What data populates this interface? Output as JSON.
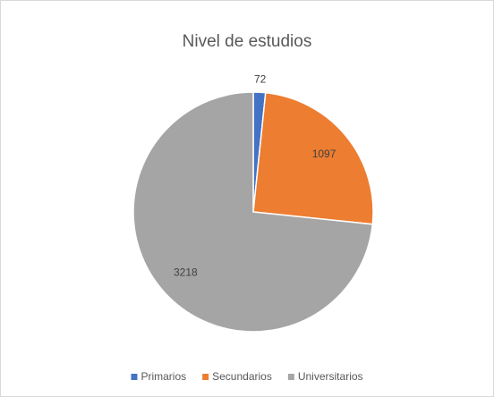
{
  "chart_data": {
    "type": "pie",
    "title": "Nivel de estudios",
    "categories": [
      "Primarios",
      "Secundarios",
      "Universitarios"
    ],
    "values": [
      72,
      1097,
      3218
    ],
    "colors": [
      "#4472c4",
      "#ed7d31",
      "#a5a5a5"
    ],
    "legend": "bottom"
  }
}
